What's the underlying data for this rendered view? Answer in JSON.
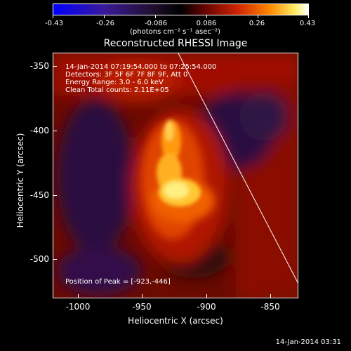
{
  "colorbar": {
    "ticks": [
      "-0.43",
      "-0.26",
      "-0.086",
      "0.086",
      "0.26",
      "0.43"
    ],
    "unit": "(photons cm⁻² s⁻¹ asec⁻²)"
  },
  "plot": {
    "title": "Reconstructed RHESSI Image",
    "info_lines": [
      "14-Jan-2014 07:19:54.000 to 07:25:54.000",
      "Detectors: 3F 5F 6F 7F 8F 9F, Att 0",
      "Energy Range: 3.0 - 6.0 keV",
      "Clean     Total counts: 2.11E+05"
    ],
    "peak_text": "Position of Peak = [-923,-446]",
    "y_ticks": [
      "-350",
      "-400",
      "-450",
      "-500"
    ],
    "x_ticks": [
      "-1000",
      "-950",
      "-900",
      "-850"
    ],
    "y_label": "Heliocentric  Y  (arcsec)",
    "x_label": "Heliocentric X (arcsec)"
  },
  "footer": {
    "timestamp": "14-Jan-2014 03:31"
  },
  "colors": {
    "background": "#000000",
    "frame": "#ffffff"
  }
}
